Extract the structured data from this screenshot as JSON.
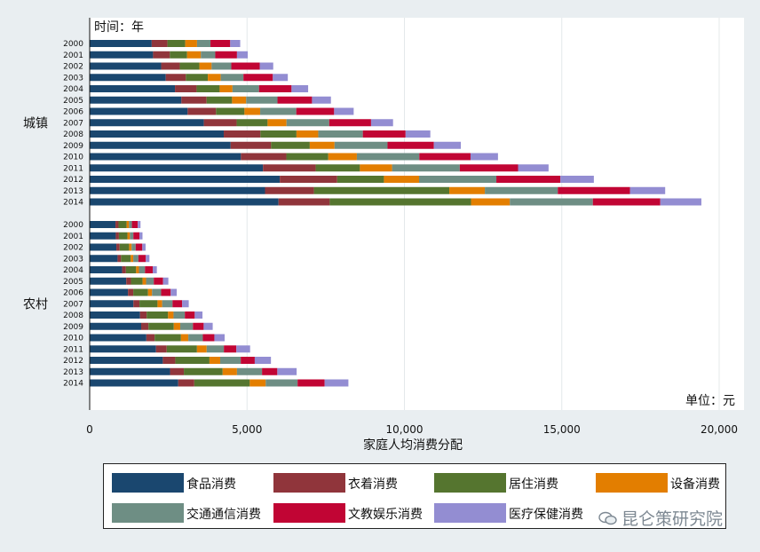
{
  "chart_data": {
    "type": "bar",
    "orientation": "horizontal",
    "stacked": true,
    "title": "",
    "xlabel": "家庭人均消费分配",
    "ylabel": "时间：年",
    "unit_note": "单位：元",
    "xlim": [
      0,
      20000
    ],
    "xticks": [
      "0",
      "5,000",
      "10,000",
      "15,000",
      "20,000"
    ],
    "grid": "vertical",
    "legend_position": "bottom",
    "series_names": [
      "食品消费",
      "衣着消费",
      "居住消费",
      "设备消费",
      "交通通信消费",
      "文教娱乐消费",
      "医疗保健消费"
    ],
    "colors": [
      "#1a476f",
      "#90353b",
      "#55752f",
      "#e37e00",
      "#6e8e84",
      "#c10534",
      "#938dd2"
    ],
    "groups": [
      {
        "name": "城镇",
        "years": [
          "2000",
          "2001",
          "2002",
          "2003",
          "2004",
          "2005",
          "2006",
          "2007",
          "2008",
          "2009",
          "2010",
          "2011",
          "2012",
          "2013",
          "2014"
        ],
        "values": [
          [
            1971,
            500,
            565,
            375,
            427,
            627,
            318
          ],
          [
            2014,
            533,
            548,
            438,
            457,
            690,
            343
          ],
          [
            2272,
            590,
            624,
            388,
            626,
            902,
            430
          ],
          [
            2417,
            638,
            699,
            410,
            721,
            934,
            476
          ],
          [
            2710,
            687,
            733,
            407,
            843,
            1033,
            528
          ],
          [
            2914,
            801,
            809,
            447,
            996,
            1097,
            601
          ],
          [
            3112,
            902,
            904,
            499,
            1147,
            1203,
            621
          ],
          [
            3628,
            1042,
            982,
            602,
            1357,
            1329,
            699
          ],
          [
            4260,
            1165,
            1145,
            692,
            1417,
            1358,
            786
          ],
          [
            4479,
            1285,
            1229,
            787,
            1683,
            1473,
            856
          ],
          [
            4805,
            1444,
            1332,
            908,
            1984,
            1628,
            872
          ],
          [
            5506,
            1675,
            1405,
            1023,
            2150,
            1852,
            969
          ],
          [
            6041,
            1824,
            1484,
            1116,
            2456,
            2034,
            1064
          ],
          [
            5571,
            1554,
            4301,
            1129,
            2318,
            2294,
            1118
          ],
          [
            6000,
            1627,
            4490,
            1233,
            2637,
            2142,
            1306
          ]
        ]
      },
      {
        "name": "农村",
        "years": [
          "2000",
          "2001",
          "2002",
          "2003",
          "2004",
          "2005",
          "2006",
          "2007",
          "2008",
          "2009",
          "2010",
          "2011",
          "2012",
          "2013",
          "2014"
        ],
        "values": [
          [
            820,
            96,
            258,
            75,
            93,
            186,
            87
          ],
          [
            830,
            99,
            272,
            77,
            110,
            193,
            97
          ],
          [
            848,
            105,
            300,
            80,
            128,
            211,
            104
          ],
          [
            886,
            110,
            308,
            81,
            162,
            236,
            116
          ],
          [
            1032,
            120,
            324,
            89,
            192,
            247,
            130
          ],
          [
            1162,
            149,
            370,
            111,
            245,
            295,
            168
          ],
          [
            1217,
            168,
            469,
            127,
            288,
            305,
            192
          ],
          [
            1389,
            193,
            573,
            149,
            328,
            306,
            210
          ],
          [
            1599,
            212,
            679,
            174,
            360,
            314,
            246
          ],
          [
            1636,
            232,
            805,
            205,
            403,
            341,
            287
          ],
          [
            1801,
            264,
            835,
            234,
            461,
            367,
            326
          ],
          [
            2107,
            341,
            961,
            308,
            547,
            396,
            437
          ],
          [
            2324,
            396,
            1086,
            341,
            653,
            445,
            514
          ],
          [
            2554,
            438,
            1233,
            455,
            796,
            486,
            614
          ],
          [
            2814,
            510,
            1763,
            506,
            1013,
            860,
            754
          ]
        ]
      }
    ]
  },
  "watermark": {
    "text": "昆仑策研究院",
    "icon": "wechat-icon"
  }
}
